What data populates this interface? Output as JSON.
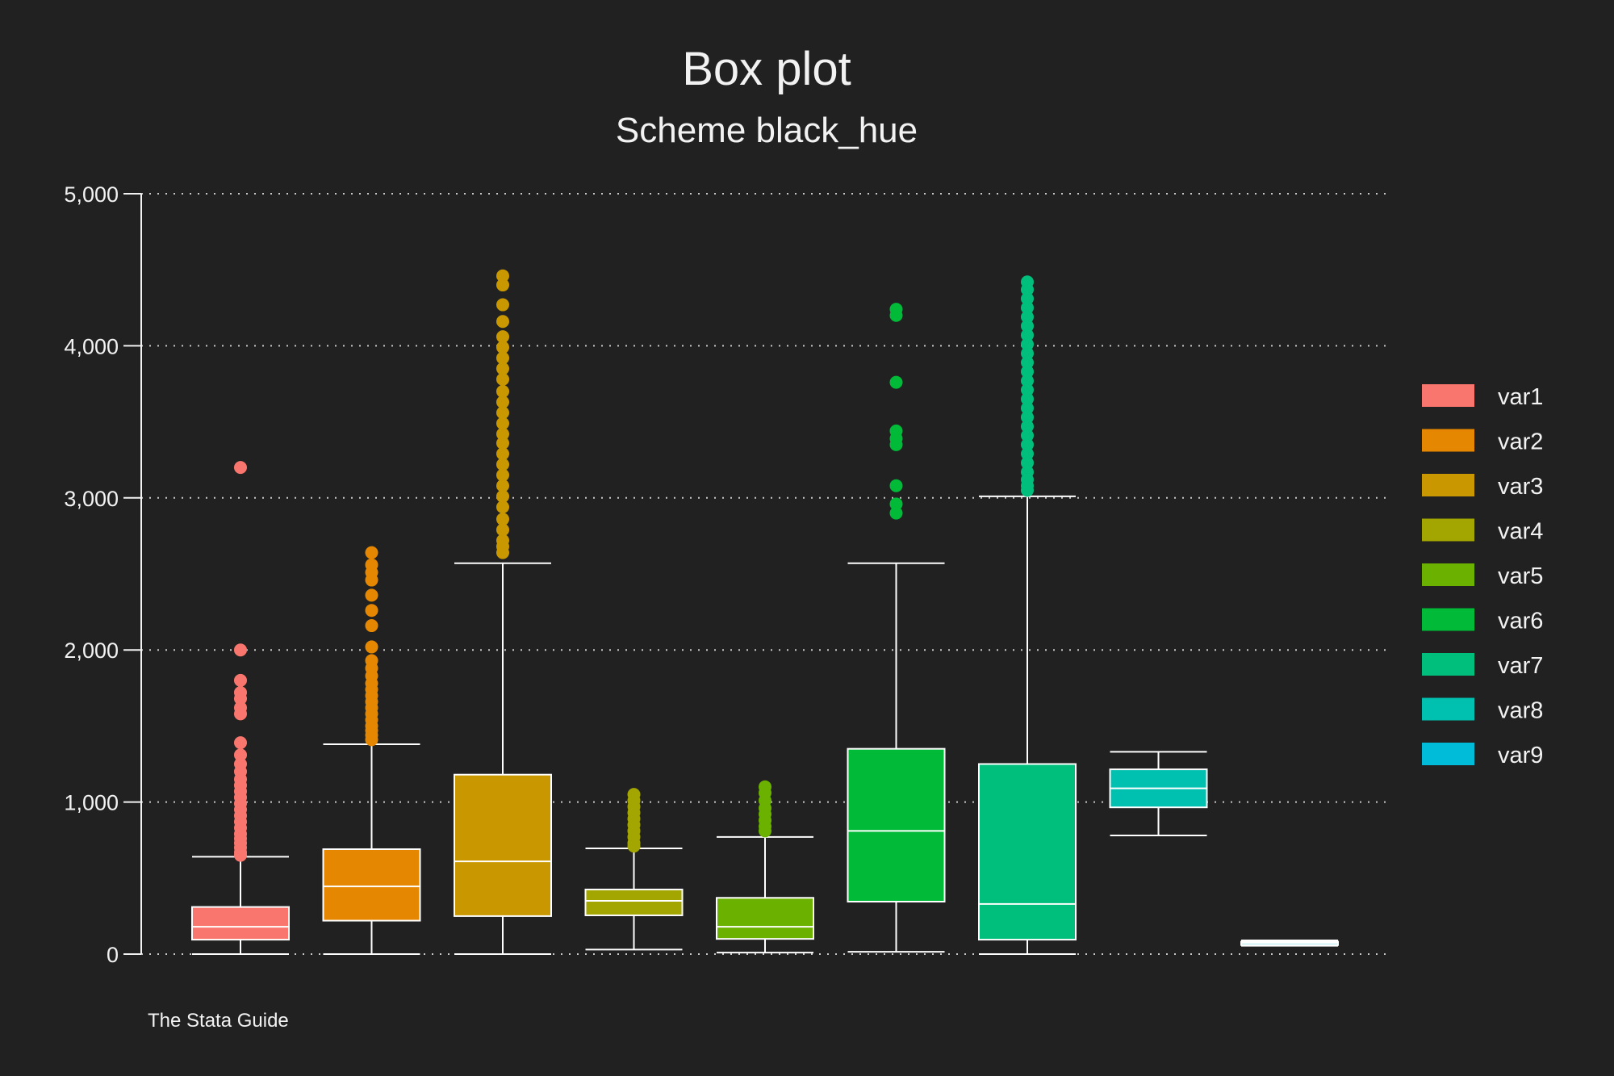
{
  "chart_data": {
    "type": "box",
    "title": "Box plot",
    "subtitle": "Scheme black_hue",
    "note": "The Stata Guide",
    "ylim": [
      0,
      5000
    ],
    "yticks": [
      0,
      1000,
      2000,
      3000,
      4000,
      5000
    ],
    "ytick_labels": [
      "0",
      "1,000",
      "2,000",
      "3,000",
      "4,000",
      "5,000"
    ],
    "grid": true,
    "legend_position": "right",
    "series": [
      {
        "name": "var1",
        "color": "#f8766d",
        "min": 0,
        "q1": 95,
        "median": 180,
        "q3": 310,
        "max": 640,
        "outliers": [
          3200,
          2000,
          1800,
          1720,
          1680,
          1620,
          1580,
          1390,
          1310,
          1250,
          1200,
          1150,
          1110,
          1070,
          1030,
          990,
          950,
          910,
          870,
          830,
          790,
          760,
          730,
          700,
          670,
          650
        ]
      },
      {
        "name": "var2",
        "color": "#e58700",
        "min": 0,
        "q1": 220,
        "median": 445,
        "q3": 690,
        "max": 1380,
        "outliers": [
          2640,
          2560,
          2510,
          2460,
          2360,
          2260,
          2160,
          2020,
          1930,
          1880,
          1830,
          1780,
          1740,
          1700,
          1660,
          1620,
          1580,
          1540,
          1500,
          1470,
          1440,
          1410
        ]
      },
      {
        "name": "var3",
        "color": "#c99800",
        "min": 0,
        "q1": 250,
        "median": 610,
        "q3": 1180,
        "max": 2570,
        "outliers": [
          4460,
          4400,
          4270,
          4160,
          4060,
          3990,
          3920,
          3850,
          3780,
          3700,
          3630,
          3560,
          3490,
          3420,
          3360,
          3290,
          3220,
          3150,
          3080,
          3010,
          2940,
          2860,
          2790,
          2720,
          2680,
          2640
        ]
      },
      {
        "name": "var4",
        "color": "#a3a500",
        "min": 30,
        "q1": 255,
        "median": 350,
        "q3": 425,
        "max": 695,
        "outliers": [
          1050,
          1010,
          970,
          930,
          890,
          850,
          810,
          770,
          730,
          710
        ]
      },
      {
        "name": "var5",
        "color": "#6bb100",
        "min": 10,
        "q1": 100,
        "median": 180,
        "q3": 370,
        "max": 770,
        "outliers": [
          1100,
          1060,
          1010,
          960,
          920,
          880,
          840,
          810
        ]
      },
      {
        "name": "var6",
        "color": "#00ba38",
        "min": 15,
        "q1": 345,
        "median": 810,
        "q3": 1350,
        "max": 2570,
        "outliers": [
          4240,
          4200,
          3760,
          3440,
          3390,
          3350,
          3080,
          2960,
          2900
        ]
      },
      {
        "name": "var7",
        "color": "#00bf7d",
        "min": 0,
        "q1": 95,
        "median": 330,
        "q3": 1250,
        "max": 3010,
        "outliers": [
          4420,
          4370,
          4310,
          4250,
          4190,
          4130,
          4070,
          4010,
          3950,
          3890,
          3830,
          3770,
          3710,
          3650,
          3590,
          3530,
          3470,
          3410,
          3350,
          3290,
          3230,
          3170,
          3120,
          3080,
          3050
        ]
      },
      {
        "name": "var8",
        "color": "#00c0af",
        "min": 780,
        "q1": 965,
        "median": 1090,
        "q3": 1215,
        "max": 1330,
        "outliers": []
      },
      {
        "name": "var9",
        "color": "#00bcd8",
        "min": 55,
        "q1": 60,
        "median": 72,
        "q3": 82,
        "max": 90,
        "outliers": []
      }
    ]
  }
}
